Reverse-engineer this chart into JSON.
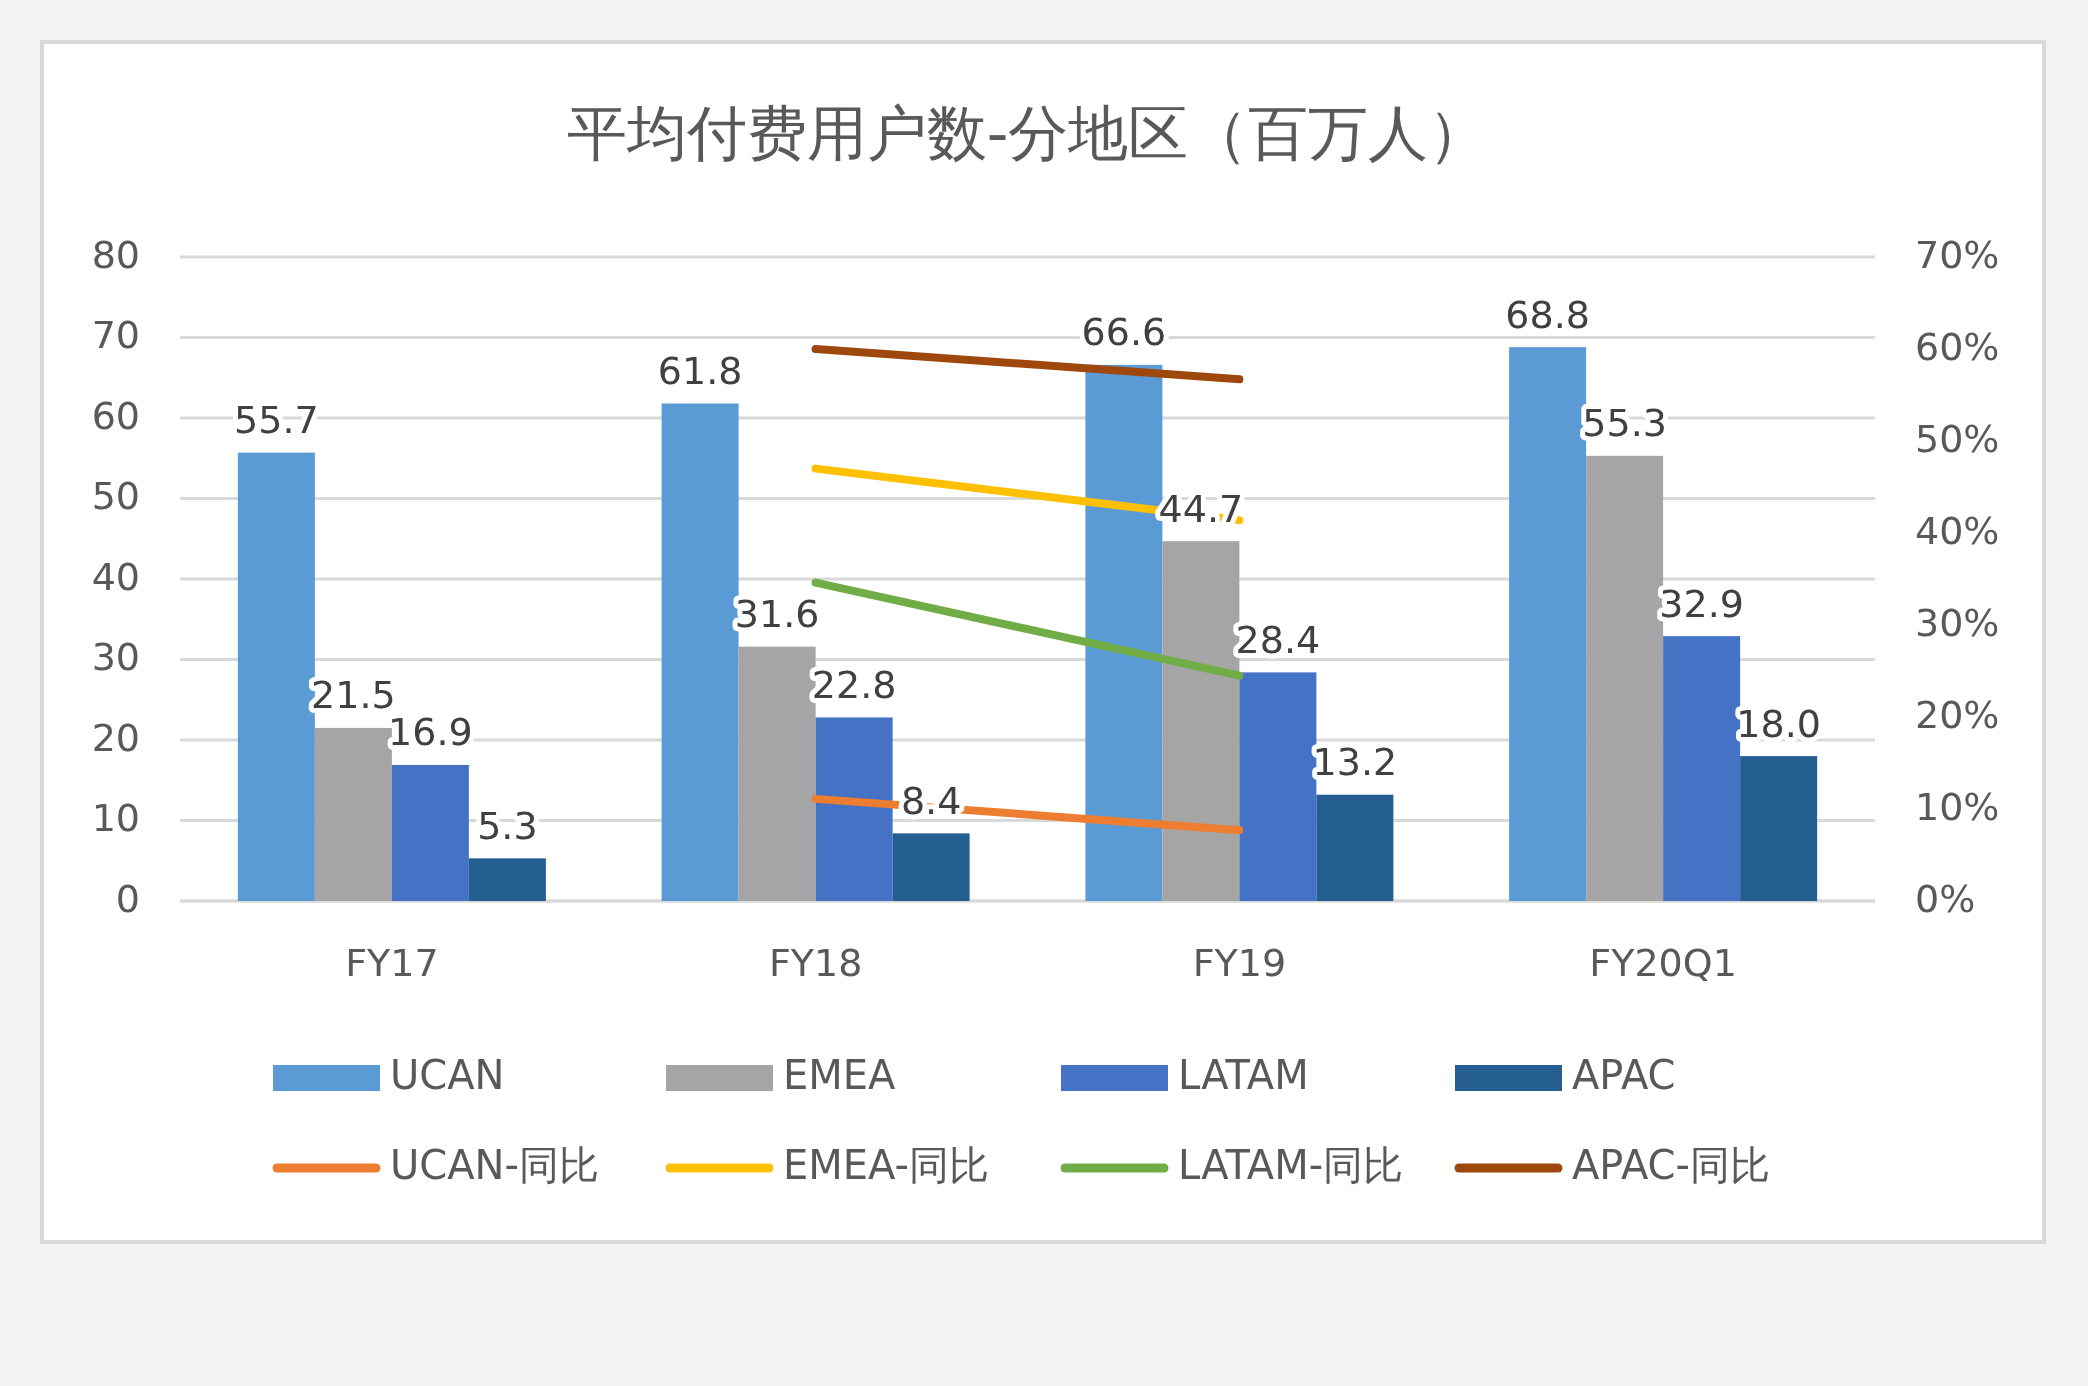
{
  "chart_data": {
    "type": "bar",
    "title": "平均付费用户数-分地区（百万人）",
    "categories": [
      "FY17",
      "FY18",
      "FY19",
      "FY20Q1"
    ],
    "series": [
      {
        "name": "UCAN",
        "color": "#5b9bd5",
        "values": [
          55.7,
          61.8,
          66.6,
          68.8
        ],
        "value_labels": [
          "55.7",
          "61.8",
          "66.6",
          "68.8"
        ]
      },
      {
        "name": "EMEA",
        "color": "#a5a5a5",
        "values": [
          21.5,
          31.6,
          44.7,
          55.3
        ],
        "value_labels": [
          "21.5",
          "31.6",
          "44.7",
          "55.3"
        ]
      },
      {
        "name": "LATAM",
        "color": "#4472c4",
        "values": [
          16.9,
          22.8,
          28.4,
          32.9
        ],
        "value_labels": [
          "16.9",
          "22.8",
          "28.4",
          "32.9"
        ]
      },
      {
        "name": "APAC",
        "color": "#255e91",
        "values": [
          5.3,
          8.4,
          13.2,
          18.0
        ],
        "value_labels": [
          "5.3",
          "8.4",
          "13.2",
          "18.0"
        ]
      },
      {
        "name": "UCAN-同比",
        "color": "#ed7d31",
        "type": "line",
        "axis": "y2",
        "values": [
          null,
          11.1,
          7.7,
          null
        ]
      },
      {
        "name": "EMEA-同比",
        "color": "#ffc000",
        "type": "line",
        "axis": "y2",
        "values": [
          null,
          47.0,
          41.4,
          null
        ]
      },
      {
        "name": "LATAM-同比",
        "color": "#70ad47",
        "type": "line",
        "axis": "y2",
        "values": [
          null,
          34.6,
          24.5,
          null
        ]
      },
      {
        "name": "APAC-同比",
        "color": "#9e480e",
        "type": "line",
        "axis": "y2",
        "values": [
          null,
          60.0,
          56.7,
          null
        ]
      }
    ],
    "ylim": [
      0,
      80
    ],
    "yticks": [
      0,
      10,
      20,
      30,
      40,
      50,
      60,
      70,
      80
    ],
    "y2lim": [
      0,
      70
    ],
    "y2ticks": [
      {
        "value": 0,
        "label": "0%"
      },
      {
        "value": 10,
        "label": "10%"
      },
      {
        "value": 20,
        "label": "20%"
      },
      {
        "value": 30,
        "label": "30%"
      },
      {
        "value": 40,
        "label": "40%"
      },
      {
        "value": 50,
        "label": "50%"
      },
      {
        "value": 60,
        "label": "60%"
      },
      {
        "value": 70,
        "label": "70%"
      }
    ],
    "grid": "y",
    "legend": "bottom"
  }
}
